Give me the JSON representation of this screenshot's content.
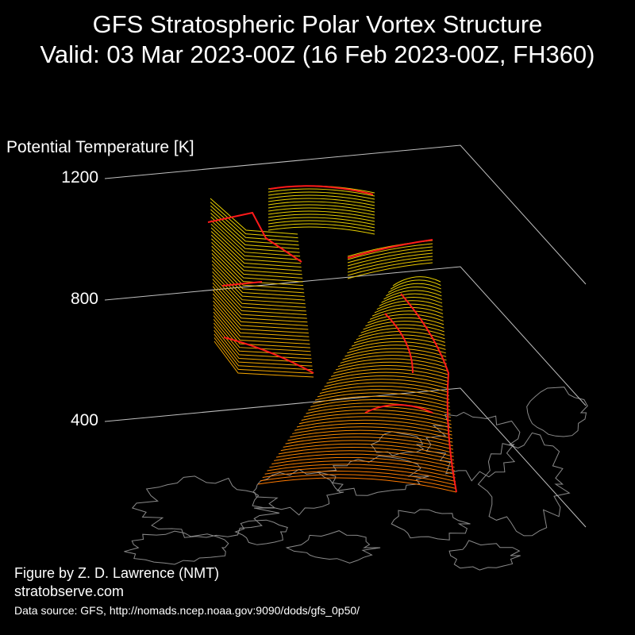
{
  "title": "GFS Stratospheric Polar Vortex Structure",
  "subtitle": "Valid: 03 Mar 2023-00Z  (16 Feb 2023-00Z, FH360)",
  "credit": {
    "author": "Figure by Z. D. Lawrence (NMT)",
    "website": "stratobserve.com",
    "source": "Data source: GFS, http://nomads.ncep.noaa.gov:9090/dods/gfs_0p50/"
  },
  "colors": {
    "background": "#000000",
    "text": "#ffffff",
    "axis": "#bfbfbf",
    "coastline": "#8a8a8a",
    "low_levels": "#ff7a00",
    "mid_levels": "#ffb000",
    "high_levels": "#e8d000",
    "edge_highlight": "#ff1a1a"
  },
  "chart_data": {
    "type": "3d-isosurface",
    "zlabel": "Potential Temperature [K]",
    "z_ticks": [
      400,
      800,
      1200
    ],
    "zlim": [
      400,
      1200
    ],
    "grid": true,
    "base_map": "Northern Hemisphere coastlines",
    "surface_color_scale": "orange (low) to yellow (high) with red edge contours"
  }
}
